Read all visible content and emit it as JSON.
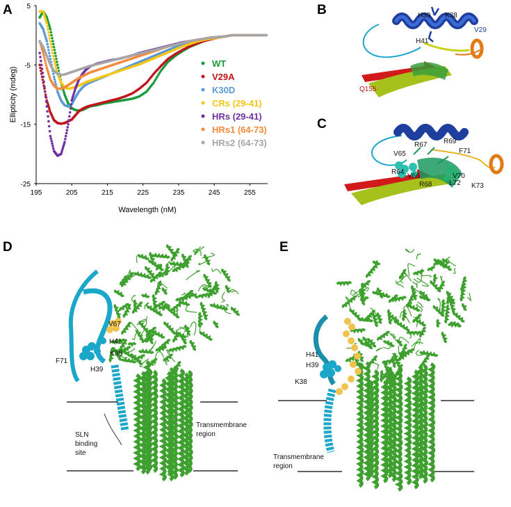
{
  "panels": {
    "a": "A",
    "b": "B",
    "c": "C",
    "d": "D",
    "e": "E"
  },
  "chart_data": {
    "type": "scatter",
    "title": "",
    "xlabel": "Wavelength (nM)",
    "ylabel": "Ellipticity (mdeg)",
    "xlim": [
      195,
      260
    ],
    "ylim": [
      -25,
      5
    ],
    "x_ticks": [
      "195",
      "205",
      "215",
      "225",
      "235",
      "245",
      "255"
    ],
    "y_ticks": [
      "5",
      "-5",
      "-15",
      "-25"
    ],
    "legend_position": "right",
    "series": [
      {
        "name": "WT",
        "color": "#1a9a3c",
        "x": [
          196,
          197,
          198,
          199,
          200,
          201,
          202,
          203,
          204,
          205,
          206,
          207,
          208,
          209,
          210,
          212,
          214,
          216,
          218,
          220,
          222,
          224,
          226,
          228,
          230,
          232,
          234,
          236,
          238,
          240,
          242,
          244,
          246,
          248,
          250,
          252,
          254,
          256,
          258,
          260
        ],
        "y": [
          3,
          4,
          3,
          1,
          -2,
          -5,
          -8,
          -10,
          -11.5,
          -12.3,
          -12.6,
          -12.7,
          -12.6,
          -12.3,
          -12.0,
          -11.8,
          -11.5,
          -11.3,
          -11.1,
          -10.9,
          -10.7,
          -10.3,
          -9.5,
          -8.0,
          -6.0,
          -4.5,
          -3.5,
          -2.7,
          -2.0,
          -1.5,
          -1.0,
          -0.6,
          -0.4,
          -0.2,
          0,
          0,
          0,
          0,
          0,
          0
        ]
      },
      {
        "name": "V29A",
        "color": "#c0151b",
        "x": [
          196,
          197,
          198,
          199,
          200,
          201,
          202,
          203,
          204,
          205,
          206,
          207,
          208,
          209,
          210,
          212,
          214,
          216,
          218,
          220,
          222,
          224,
          226,
          228,
          230,
          232,
          234,
          236,
          238,
          240,
          242,
          244,
          246,
          248,
          250,
          252,
          254,
          256,
          258,
          260
        ],
        "y": [
          -5,
          -8,
          -11,
          -13,
          -14.3,
          -14.8,
          -14.9,
          -14.8,
          -14.5,
          -14.2,
          -13.5,
          -12.8,
          -12.4,
          -12.1,
          -11.9,
          -11.6,
          -11.3,
          -11.0,
          -10.7,
          -10.3,
          -9.8,
          -9.0,
          -8.0,
          -6.5,
          -5.2,
          -4.0,
          -3.2,
          -2.5,
          -1.9,
          -1.4,
          -1.0,
          -0.7,
          -0.4,
          -0.2,
          0,
          0,
          0,
          0,
          0,
          0
        ]
      },
      {
        "name": "K30D",
        "color": "#5b9bd5",
        "x": [
          196,
          197,
          198,
          199,
          200,
          201,
          202,
          203,
          204,
          205,
          206,
          207,
          208,
          209,
          210,
          212,
          214,
          216,
          218,
          220,
          222,
          224,
          226,
          228,
          230,
          232,
          234,
          236,
          238,
          240,
          242,
          244,
          246,
          248,
          250,
          252,
          254,
          256,
          258,
          260
        ],
        "y": [
          2,
          1,
          -1,
          -4,
          -7,
          -9.5,
          -11,
          -11.8,
          -12,
          -11.6,
          -10.5,
          -9.5,
          -8.8,
          -8.3,
          -8.0,
          -7.5,
          -7.0,
          -6.5,
          -6.0,
          -5.5,
          -5.0,
          -4.5,
          -4.0,
          -3.5,
          -3.0,
          -2.5,
          -2.0,
          -1.6,
          -1.2,
          -0.9,
          -0.7,
          -0.5,
          -0.3,
          -0.2,
          0,
          0,
          0,
          0,
          0,
          0
        ]
      },
      {
        "name": "CRs (29-41)",
        "color": "#f5c518",
        "x": [
          196,
          197,
          198,
          199,
          200,
          201,
          202,
          203,
          204,
          205,
          206,
          207,
          208,
          209,
          210,
          212,
          214,
          216,
          218,
          220,
          222,
          224,
          226,
          228,
          230,
          232,
          234,
          236,
          238,
          240,
          242,
          244,
          246,
          248,
          250,
          252,
          254,
          256,
          258,
          260
        ],
        "y": [
          4,
          4,
          2,
          -1,
          -4,
          -6.5,
          -8,
          -8.8,
          -9,
          -8.9,
          -8.7,
          -8.5,
          -8.2,
          -7.9,
          -7.7,
          -7.3,
          -6.9,
          -6.5,
          -6.1,
          -5.7,
          -5.3,
          -4.9,
          -4.4,
          -3.9,
          -3.4,
          -2.9,
          -2.4,
          -1.9,
          -1.5,
          -1.1,
          -0.8,
          -0.6,
          -0.4,
          -0.2,
          0,
          0,
          0,
          0,
          0,
          0
        ]
      },
      {
        "name": "HRs (29-41)",
        "color": "#7030a0",
        "x": [
          196,
          197,
          198,
          199,
          200,
          201,
          202,
          203,
          204,
          205,
          206,
          207,
          208,
          209,
          210,
          212,
          214,
          216,
          218,
          220,
          222,
          224,
          226,
          228,
          230,
          232,
          234,
          236,
          238,
          240,
          242,
          244,
          246,
          248,
          250,
          252,
          254,
          256,
          258,
          260
        ],
        "y": [
          -3,
          -7,
          -12,
          -17,
          -19.5,
          -20.3,
          -20,
          -18,
          -15,
          -11,
          -9,
          -7.5,
          -6.5,
          -5.8,
          -5.3,
          -4.8,
          -4.5,
          -4.2,
          -4.0,
          -3.7,
          -3.4,
          -3.0,
          -2.7,
          -2.4,
          -2.1,
          -1.8,
          -1.5,
          -1.2,
          -1.0,
          -0.8,
          -0.6,
          -0.4,
          -0.3,
          -0.2,
          0,
          0,
          0,
          0,
          0,
          0
        ]
      },
      {
        "name": "HRs1 (64-73)",
        "color": "#f58a3c",
        "x": [
          196,
          197,
          198,
          199,
          200,
          201,
          202,
          203,
          204,
          205,
          206,
          207,
          208,
          209,
          210,
          212,
          214,
          216,
          218,
          220,
          222,
          224,
          226,
          228,
          230,
          232,
          234,
          236,
          238,
          240,
          242,
          244,
          246,
          248,
          250,
          252,
          254,
          256,
          258,
          260
        ],
        "y": [
          -1,
          -3,
          -5.5,
          -7.5,
          -8.5,
          -9,
          -9,
          -8.8,
          -8.4,
          -8.0,
          -7.6,
          -7.2,
          -6.9,
          -6.6,
          -6.3,
          -5.9,
          -5.5,
          -5.1,
          -4.7,
          -4.3,
          -3.9,
          -3.5,
          -3.1,
          -2.7,
          -2.3,
          -1.9,
          -1.6,
          -1.3,
          -1.0,
          -0.8,
          -0.6,
          -0.4,
          -0.3,
          -0.2,
          0,
          0,
          0,
          0,
          0,
          0
        ]
      },
      {
        "name": "HRs2 (64-73)",
        "color": "#a6a6a6",
        "x": [
          196,
          197,
          198,
          199,
          200,
          201,
          202,
          203,
          204,
          205,
          206,
          207,
          208,
          209,
          210,
          212,
          214,
          216,
          218,
          220,
          222,
          224,
          226,
          228,
          230,
          232,
          234,
          236,
          238,
          240,
          242,
          244,
          246,
          248,
          250,
          252,
          254,
          256,
          258,
          260
        ],
        "y": [
          -1,
          -2,
          -3.5,
          -5,
          -6,
          -6.5,
          -6.7,
          -6.6,
          -6.4,
          -6.2,
          -6.0,
          -5.8,
          -5.6,
          -5.4,
          -5.2,
          -4.9,
          -4.6,
          -4.3,
          -4.0,
          -3.7,
          -3.4,
          -3.1,
          -2.8,
          -2.5,
          -2.2,
          -1.9,
          -1.6,
          -1.3,
          -1.0,
          -0.8,
          -0.6,
          -0.4,
          -0.3,
          -0.2,
          0,
          0,
          0,
          0,
          0,
          0
        ]
      }
    ]
  },
  "structure_b": {
    "labels": [
      "H39",
      "K38",
      "V29",
      "H41",
      "Q155"
    ],
    "label_colors": {
      "V29": "#1f3f9f",
      "Q155": "#c0151b"
    }
  },
  "structure_c": {
    "labels": [
      "R67",
      "R69",
      "F71",
      "V65",
      "R64",
      "V66",
      "V70",
      "R68",
      "L72",
      "K73"
    ]
  },
  "structure_d": {
    "labels": [
      "V67",
      "H41",
      "K38",
      "F71",
      "H39",
      "SLN",
      "binding",
      "site",
      "Transmembrane",
      "region"
    ]
  },
  "structure_e": {
    "labels": [
      "H41",
      "H39",
      "K38",
      "Transmembrane",
      "region"
    ]
  },
  "colors": {
    "protein_green": "#3ea02e",
    "domain_cyan": "#1aa7c9",
    "sphere_yellow": "#f2c24e",
    "helix_blue": "#1f3f9f"
  }
}
